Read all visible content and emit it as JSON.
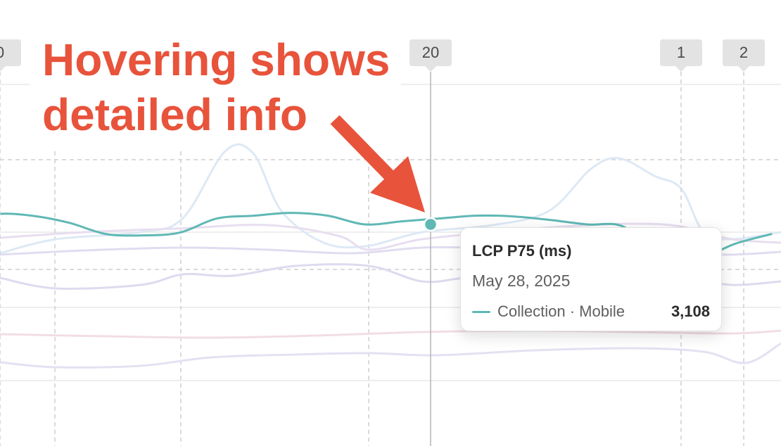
{
  "colors": {
    "active_series": "#5fb8b5",
    "annotation": "#e8533b",
    "marker_bg": "#e3e3e3",
    "grid": "#d6d6d6",
    "crosshair": "#b5b5b5"
  },
  "annotation": {
    "line1": "Hovering shows",
    "line2": "detailed info",
    "arrow_icon": "arrow-icon"
  },
  "tooltip": {
    "title": "LCP P75 (ms)",
    "date": "May 28, 2025",
    "series_label": "Collection · Mobile",
    "value": "3,108"
  },
  "chart_data": {
    "type": "line",
    "title": "",
    "xlabel": "",
    "ylabel": "LCP P75 (ms)",
    "grid": true,
    "hovered": {
      "x": "May 28, 2025",
      "series": "Collection · Mobile",
      "value": 3108
    },
    "markers": [
      {
        "label": "0"
      },
      {
        "label": "20"
      },
      {
        "label": "1"
      },
      {
        "label": "2"
      }
    ],
    "series": [
      {
        "name": "Collection · Mobile",
        "color": "#5fb8b5",
        "values": [
          3108,
          3180,
          3170,
          3120,
          3040,
          3030,
          3050,
          3150,
          3170,
          3190,
          3170,
          3108,
          3130,
          3150,
          3170,
          3165,
          3140,
          3108,
          3090,
          2860,
          2860,
          2970,
          3040
        ]
      }
    ]
  }
}
